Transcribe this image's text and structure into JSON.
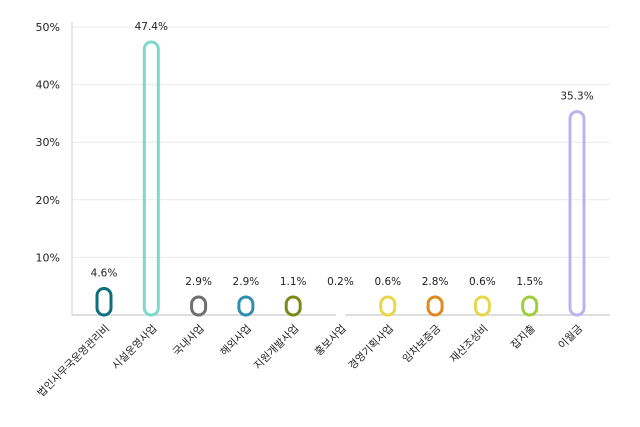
{
  "chart_data": {
    "type": "bar",
    "categories": [
      "법인사무국운영관리비",
      "시설운영사업",
      "국내사업",
      "해외사업",
      "지원개발사업",
      "홍보사업",
      "경영기획사업",
      "임차보증금",
      "재산조성비",
      "잡지출",
      "이월금"
    ],
    "values": [
      4.6,
      47.4,
      2.9,
      2.9,
      1.1,
      0.2,
      0.6,
      2.8,
      0.6,
      1.5,
      35.3
    ],
    "value_labels": [
      "4.6%",
      "47.4%",
      "2.9%",
      "2.9%",
      "1.1%",
      "0.2%",
      "0.6%",
      "2.8%",
      "0.6%",
      "1.5%",
      "35.3%"
    ],
    "colors": [
      "#0e6e7e",
      "#7fd9c9",
      "#6f6f6f",
      "#2f8fae",
      "#7a8a1a",
      "#ffffff",
      "#e6d84a",
      "#e08a1e",
      "#e6d84a",
      "#9ccf3a",
      "#b9b4ec"
    ],
    "ylim": [
      0,
      50
    ],
    "yticks": [
      10,
      20,
      30,
      40,
      50
    ],
    "ytick_labels": [
      "10%",
      "20%",
      "30%",
      "40%",
      "50%"
    ],
    "grid": true,
    "title": "",
    "xlabel": "",
    "ylabel": ""
  }
}
